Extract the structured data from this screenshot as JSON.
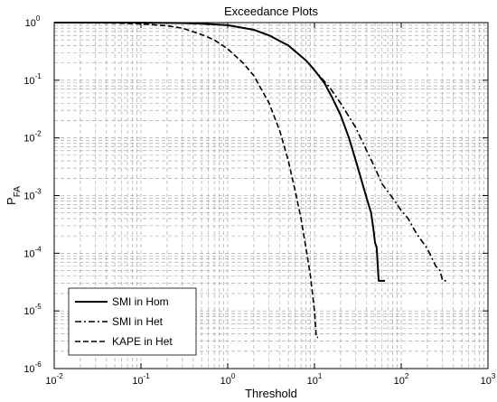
{
  "chart_data": {
    "type": "line",
    "title": "Exceedance Plots",
    "xlabel": "Threshold",
    "ylabel_main": "P",
    "ylabel_sub": "FA",
    "x_scale": "log",
    "y_scale": "log",
    "xlim": [
      0.01,
      1000
    ],
    "ylim": [
      1e-06,
      1
    ],
    "grid": true,
    "legend_position": "bottom-left",
    "x_ticks": [
      {
        "base": "10",
        "exp": "-2"
      },
      {
        "base": "10",
        "exp": "-1"
      },
      {
        "base": "10",
        "exp": "0"
      },
      {
        "base": "10",
        "exp": "1"
      },
      {
        "base": "10",
        "exp": "2"
      },
      {
        "base": "10",
        "exp": "3"
      }
    ],
    "y_ticks": [
      {
        "base": "10",
        "exp": "0"
      },
      {
        "base": "10",
        "exp": "-1"
      },
      {
        "base": "10",
        "exp": "-2"
      },
      {
        "base": "10",
        "exp": "-3"
      },
      {
        "base": "10",
        "exp": "-4"
      },
      {
        "base": "10",
        "exp": "-5"
      },
      {
        "base": "10",
        "exp": "-6"
      }
    ],
    "series": [
      {
        "name": "SMI in Hom",
        "dash": "solid",
        "x": [
          0.01,
          0.05,
          0.1,
          0.3,
          0.5,
          1,
          2,
          3,
          5,
          8,
          10,
          13,
          16,
          20,
          25,
          30,
          35,
          40,
          45,
          48,
          50,
          52,
          55,
          60,
          65
        ],
        "y": [
          1,
          0.998,
          0.996,
          0.98,
          0.96,
          0.9,
          0.75,
          0.6,
          0.4,
          0.22,
          0.15,
          0.09,
          0.05,
          0.025,
          0.01,
          0.004,
          0.0018,
          0.0009,
          0.0005,
          0.00025,
          0.00015,
          0.00013,
          3.33e-05,
          3.33e-05,
          3.33e-05
        ]
      },
      {
        "name": "SMI in Het",
        "dash": "dashdot",
        "x": [
          0.01,
          0.1,
          0.3,
          1,
          2,
          3,
          5,
          8,
          10,
          15,
          20,
          30,
          40,
          50,
          60,
          80,
          100,
          120,
          150,
          200,
          250,
          280,
          300,
          350
        ],
        "y": [
          1,
          0.996,
          0.98,
          0.9,
          0.75,
          0.6,
          0.4,
          0.22,
          0.15,
          0.075,
          0.04,
          0.015,
          0.006,
          0.003,
          0.0016,
          0.0009,
          0.00055,
          0.0004,
          0.00022,
          0.00012,
          6e-05,
          5e-05,
          3.33e-05,
          3.33e-05
        ]
      },
      {
        "name": "KAPE in Het",
        "dash": "dashed",
        "x": [
          0.01,
          0.05,
          0.1,
          0.2,
          0.3,
          0.5,
          0.7,
          1,
          1.5,
          2,
          3,
          4,
          5,
          6,
          7,
          8,
          9,
          10,
          10.5,
          11
        ],
        "y": [
          1,
          0.98,
          0.95,
          0.88,
          0.8,
          0.62,
          0.5,
          0.35,
          0.2,
          0.12,
          0.04,
          0.013,
          0.004,
          0.0012,
          0.0004,
          0.00012,
          4e-05,
          1e-05,
          3.5e-06,
          3.5e-06
        ]
      }
    ]
  }
}
